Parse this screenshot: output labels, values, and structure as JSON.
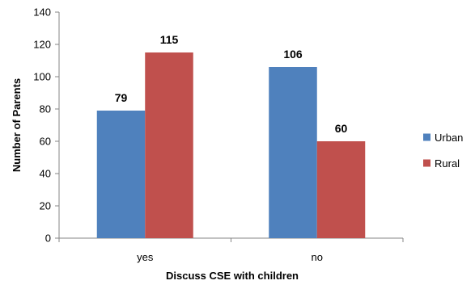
{
  "chart_data": {
    "type": "bar",
    "title": "",
    "xlabel": "Discuss CSE with children",
    "ylabel": "Number of Parents",
    "categories": [
      "yes",
      "no"
    ],
    "series": [
      {
        "name": "Urban",
        "values": [
          79,
          106
        ],
        "color": "#4F81BD"
      },
      {
        "name": "Rural",
        "values": [
          115,
          60
        ],
        "color": "#C0504D"
      }
    ],
    "ylim": [
      0,
      140
    ],
    "yticks": [
      0,
      20,
      40,
      60,
      80,
      100,
      120,
      140
    ],
    "grid": false,
    "legend_position": "right",
    "data_labels": true
  }
}
